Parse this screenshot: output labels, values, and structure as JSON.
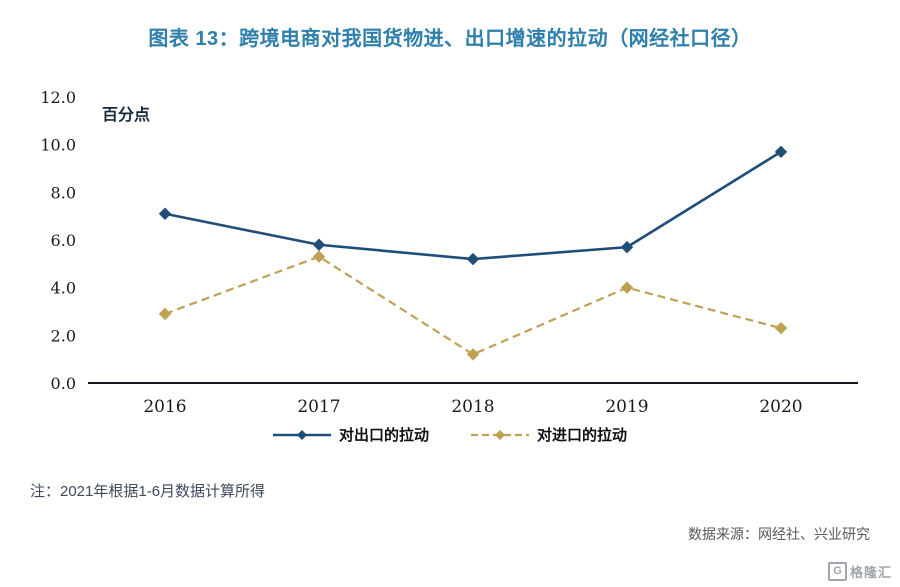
{
  "title": {
    "text": "图表 13：跨境电商对我国货物进、出口增速的拉动（网经社口径）",
    "color": "#2e7fab"
  },
  "chart_data": {
    "type": "line",
    "categories": [
      "2016",
      "2017",
      "2018",
      "2019",
      "2020"
    ],
    "series": [
      {
        "name": "对出口的拉动",
        "values": [
          7.1,
          5.8,
          5.2,
          5.7,
          9.7
        ],
        "color": "#1f4e79",
        "style": "solid"
      },
      {
        "name": "对进口的拉动",
        "values": [
          2.9,
          5.3,
          1.2,
          4.0,
          2.3
        ],
        "color": "#bfa054",
        "style": "dashed"
      }
    ],
    "unit_label": "百分点",
    "ylim": [
      0,
      12
    ],
    "ytick_step": 2,
    "ytick_labels": [
      "0.0",
      "2.0",
      "4.0",
      "6.0",
      "8.0",
      "10.0",
      "12.0"
    ],
    "grid": false,
    "legend_position": "bottom"
  },
  "note": "注：2021年根据1-6月数据计算所得",
  "source": "数据来源：网经社、兴业研究",
  "logo": {
    "text": "格隆汇",
    "icon_letter": "G"
  }
}
